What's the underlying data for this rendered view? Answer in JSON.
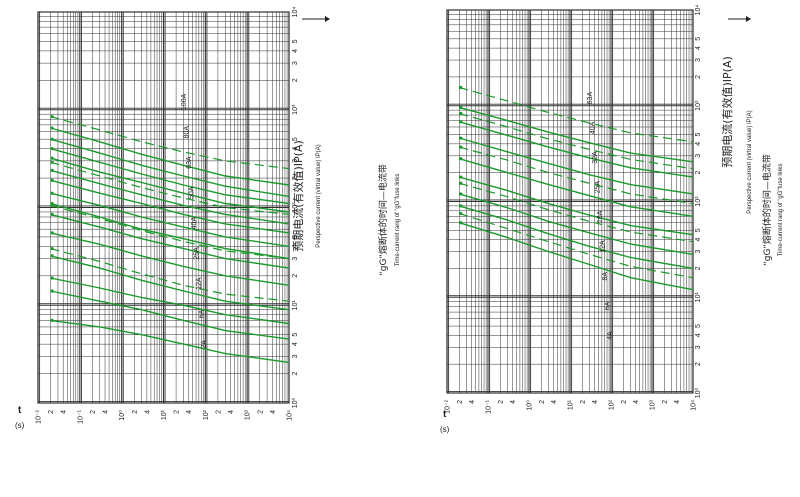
{
  "page": {
    "background": "#ffffff"
  },
  "charts": [
    {
      "title_cn": "“gG”熔断体的时间—电流带",
      "title_en": "Time-current rang of “gG”fuse links",
      "current_label_cn": "预期电流(有效值)IP(A)",
      "current_label_en": "Perspective current (virtral value) IP(A)",
      "time_symbol": "t",
      "time_unit": "(s)",
      "curve_color": "#1a9a2a",
      "grid_color": "#333333"
    },
    {
      "title_cn": "“gG”熔断体的时间—电流带",
      "title_en": "Time-current rang of “gG”fuse links",
      "current_label_cn": "预期电流(有效值)IP(A)",
      "current_label_en": "Perspective current (virtral value) IP(A)",
      "time_symbol": "t",
      "time_unit": "(s)",
      "curve_color": "#1a9a2a",
      "grid_color": "#333333"
    }
  ],
  "chart_data": [
    {
      "type": "line",
      "title": "“gG”熔断体的时间—电流带",
      "xlabel": "预期电流(有效值)IP(A)",
      "ylabel": "t (s)",
      "x_scale": "log",
      "y_scale": "log",
      "xlim": [
        1,
        10000
      ],
      "ylim": [
        0.01,
        10000
      ],
      "x_tick_labels": [
        "10⁰",
        "2",
        "3",
        "4",
        "5",
        "10¹",
        "2",
        "3",
        "4",
        "5",
        "10²",
        "2",
        "3",
        "4",
        "5",
        "10³",
        "2",
        "3",
        "4",
        "5",
        "10⁴"
      ],
      "y_tick_labels": [
        "10⁻²",
        "2",
        "4",
        "10⁻¹",
        "2",
        "4",
        "10⁰",
        "2",
        "4",
        "10¹",
        "2",
        "4",
        "10²",
        "2",
        "4",
        "10³",
        "2",
        "4",
        "10⁴"
      ],
      "grid": true,
      "series": [
        {
          "name": "2A",
          "style": "solid",
          "x": [
            2.6,
            3.2,
            4,
            5,
            6,
            7
          ],
          "y": [
            10000,
            300,
            30,
            3,
            0.3,
            0.02
          ]
        },
        {
          "name": "2A",
          "style": "solid",
          "x": [
            4.5,
            5.5,
            7,
            9,
            11,
            14
          ],
          "y": [
            10000,
            300,
            30,
            3,
            0.3,
            0.02
          ]
        },
        {
          "name": "4A",
          "style": "solid",
          "x": [
            6.5,
            8,
            10,
            12,
            15,
            19
          ],
          "y": [
            10000,
            300,
            30,
            3,
            0.3,
            0.02
          ]
        },
        {
          "name": "6A",
          "style": "solid",
          "x": [
            9,
            11,
            14,
            18,
            24,
            32
          ],
          "y": [
            10000,
            300,
            30,
            3,
            0.3,
            0.02
          ]
        },
        {
          "name": "10A",
          "style": "solid",
          "x": [
            16,
            20,
            25,
            32,
            42,
            55
          ],
          "y": [
            10000,
            300,
            30,
            3,
            0.3,
            0.02
          ]
        },
        {
          "name": "16A",
          "style": "solid",
          "x": [
            24,
            30,
            38,
            48,
            63,
            85
          ],
          "y": [
            10000,
            300,
            30,
            3,
            0.3,
            0.02
          ]
        },
        {
          "name": "20A",
          "style": "solid",
          "x": [
            30,
            38,
            48,
            60,
            80,
            110
          ],
          "y": [
            10000,
            300,
            30,
            3,
            0.3,
            0.02
          ]
        },
        {
          "name": "25A",
          "style": "solid",
          "x": [
            40,
            50,
            63,
            80,
            105,
            140
          ],
          "y": [
            10000,
            300,
            30,
            3,
            0.3,
            0.02
          ]
        },
        {
          "name": "32A",
          "style": "solid",
          "x": [
            55,
            68,
            85,
            110,
            140,
            190
          ],
          "y": [
            10000,
            300,
            30,
            3,
            0.3,
            0.02
          ]
        },
        {
          "name": "40A",
          "style": "solid",
          "x": [
            68,
            85,
            105,
            135,
            175,
            240
          ],
          "y": [
            10000,
            300,
            30,
            3,
            0.3,
            0.02
          ]
        },
        {
          "name": "50A",
          "style": "solid",
          "x": [
            90,
            110,
            140,
            180,
            230,
            320
          ],
          "y": [
            10000,
            300,
            30,
            3,
            0.3,
            0.02
          ]
        },
        {
          "name": "63A",
          "style": "solid",
          "x": [
            110,
            135,
            170,
            220,
            290,
            400
          ],
          "y": [
            10000,
            300,
            30,
            3,
            0.3,
            0.02
          ]
        },
        {
          "name": "80A",
          "style": "solid",
          "x": [
            130,
            165,
            210,
            270,
            360,
            500
          ],
          "y": [
            10000,
            300,
            30,
            3,
            0.3,
            0.02
          ]
        },
        {
          "name": "100A",
          "style": "solid",
          "x": [
            170,
            210,
            270,
            350,
            470,
            650
          ],
          "y": [
            10000,
            300,
            30,
            3,
            0.3,
            0.02
          ]
        },
        {
          "name": "",
          "style": "dashed",
          "x": [
            11,
            13,
            16,
            21,
            28,
            38
          ],
          "y": [
            10000,
            300,
            30,
            3,
            0.3,
            0.02
          ]
        },
        {
          "name": "",
          "style": "dashed",
          "x": [
            30,
            36,
            45,
            58,
            77,
            105
          ],
          "y": [
            10000,
            300,
            30,
            3,
            0.3,
            0.02
          ]
        },
        {
          "name": "",
          "style": "dashed",
          "x": [
            85,
            100,
            125,
            160,
            210,
            290
          ],
          "y": [
            10000,
            300,
            30,
            3,
            0.3,
            0.02
          ]
        },
        {
          "name": "",
          "style": "dashed",
          "x": [
            250,
            300,
            370,
            470,
            620,
            850
          ],
          "y": [
            10000,
            300,
            30,
            3,
            0.3,
            0.02
          ]
        }
      ],
      "curve_labels": [
        "2A",
        "6A",
        "12A",
        "25A",
        "40A",
        "50A",
        "63A",
        "80A",
        "100A"
      ]
    },
    {
      "type": "line",
      "title": "“gG”熔断体的时间—电流带",
      "xlabel": "预期电流(有效值)IP(A)",
      "ylabel": "t (s)",
      "x_scale": "log",
      "y_scale": "log",
      "xlim": [
        1,
        10000
      ],
      "ylim": [
        0.01,
        10000
      ],
      "x_tick_labels": [
        "10⁰",
        "2",
        "3",
        "4",
        "5",
        "10¹",
        "2",
        "3",
        "4",
        "5",
        "10²",
        "2",
        "3",
        "4",
        "5",
        "10³",
        "2",
        "3",
        "4",
        "5",
        "10⁴"
      ],
      "y_tick_labels": [
        "10⁻²",
        "2",
        "4",
        "10⁻¹",
        "2",
        "4",
        "10⁰",
        "2",
        "4",
        "10¹",
        "2",
        "4",
        "10²",
        "2",
        "4",
        "10³",
        "2",
        "4",
        "10⁴"
      ],
      "grid": true,
      "series": [
        {
          "name": "4A",
          "style": "solid",
          "x": [
            12,
            16,
            22,
            30,
            42,
            60
          ],
          "y": [
            10000,
            300,
            30,
            3,
            0.3,
            0.02
          ]
        },
        {
          "name": "6A",
          "style": "solid",
          "x": [
            20,
            26,
            34,
            46,
            64,
            90
          ],
          "y": [
            10000,
            300,
            30,
            3,
            0.3,
            0.02
          ]
        },
        {
          "name": "8A",
          "style": "solid",
          "x": [
            28,
            36,
            47,
            62,
            86,
            120
          ],
          "y": [
            10000,
            300,
            30,
            3,
            0.3,
            0.02
          ]
        },
        {
          "name": "12A",
          "style": "solid",
          "x": [
            45,
            56,
            72,
            95,
            130,
            180
          ],
          "y": [
            10000,
            300,
            30,
            3,
            0.3,
            0.02
          ]
        },
        {
          "name": "16A",
          "style": "solid",
          "x": [
            70,
            88,
            115,
            150,
            200,
            280
          ],
          "y": [
            10000,
            300,
            30,
            3,
            0.3,
            0.02
          ]
        },
        {
          "name": "25A",
          "style": "solid",
          "x": [
            120,
            150,
            190,
            250,
            330,
            460
          ],
          "y": [
            10000,
            300,
            30,
            3,
            0.3,
            0.02
          ]
        },
        {
          "name": "32A",
          "style": "solid",
          "x": [
            180,
            225,
            285,
            370,
            490,
            680
          ],
          "y": [
            10000,
            300,
            30,
            3,
            0.3,
            0.02
          ]
        },
        {
          "name": "40A",
          "style": "solid",
          "x": [
            260,
            320,
            410,
            530,
            700,
            960
          ],
          "y": [
            10000,
            300,
            30,
            3,
            0.3,
            0.02
          ]
        },
        {
          "name": "",
          "style": "dashed",
          "x": [
            16,
            21,
            28,
            38,
            52,
            75
          ],
          "y": [
            10000,
            300,
            30,
            3,
            0.3,
            0.02
          ]
        },
        {
          "name": "",
          "style": "dashed",
          "x": [
            38,
            48,
            62,
            82,
            112,
            155
          ],
          "y": [
            10000,
            300,
            30,
            3,
            0.3,
            0.02
          ]
        },
        {
          "name": "",
          "style": "dashed",
          "x": [
            95,
            120,
            155,
            200,
            270,
            370
          ],
          "y": [
            10000,
            300,
            30,
            3,
            0.3,
            0.02
          ]
        },
        {
          "name": "",
          "style": "dashed",
          "x": [
            220,
            275,
            350,
            450,
            600,
            830
          ],
          "y": [
            10000,
            300,
            30,
            3,
            0.3,
            0.02
          ]
        },
        {
          "name": "",
          "style": "dashed",
          "x": [
            420,
            520,
            660,
            850,
            1120,
            1550
          ],
          "y": [
            10000,
            300,
            30,
            3,
            0.3,
            0.02
          ]
        }
      ],
      "curve_labels": [
        "4A",
        "6A",
        "8A",
        "12A",
        "16A",
        "25A",
        "32A",
        "40A",
        "63A"
      ]
    }
  ]
}
